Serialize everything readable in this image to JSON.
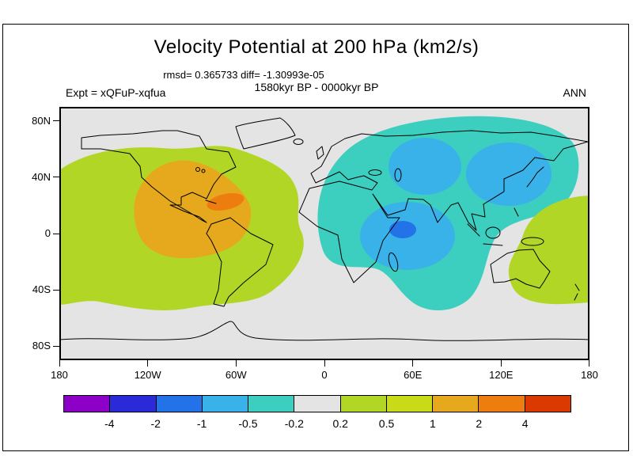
{
  "page": {
    "title": "Velocity Potential at 200 hPa (km2/s)",
    "stats": "rmsd= 0.365733 diff= -1.30993e-05",
    "period": "1580kyr BP - 0000kyr BP",
    "experiment": "Expt = xQFuP-xqfua",
    "season": "ANN"
  },
  "map": {
    "lat_ticks": [
      "80N",
      "40N",
      "0",
      "40S",
      "80S"
    ],
    "lon_ticks": [
      "180",
      "120W",
      "60W",
      "0",
      "60E",
      "120E",
      "180"
    ]
  },
  "colorbar": {
    "colors": [
      "#8c00c8",
      "#2a2ad8",
      "#2472e8",
      "#38b2e8",
      "#3ccfc0",
      "#e4e4e4",
      "#b2d626",
      "#c8da18",
      "#e6a81c",
      "#ee7d10",
      "#da3a00"
    ],
    "labels": [
      "-4",
      "-2",
      "-1",
      "-0.5",
      "-0.2",
      "0.2",
      "0.5",
      "1",
      "2",
      "4"
    ]
  },
  "chart_data": {
    "type": "heatmap",
    "subtype": "filled_contour_world_map",
    "title": "Velocity Potential at 200 hPa (km2/s)",
    "units": "km2/s",
    "stats": {
      "rmsd": 0.365733,
      "diff": -1.30993e-05
    },
    "difference": "1580kyr BP - 0000kyr BP",
    "experiment": "xQFuP-xqfua",
    "season": "ANN",
    "contour_levels": [
      -4,
      -2,
      -1,
      -0.5,
      -0.2,
      0.2,
      0.5,
      1,
      2,
      4
    ],
    "x_axis": {
      "ticks": [
        "180",
        "120W",
        "60W",
        "0",
        "60E",
        "120E",
        "180"
      ],
      "range_deg": [
        -180,
        180
      ]
    },
    "y_axis": {
      "ticks": [
        "80N",
        "40N",
        "0",
        "40S",
        "80S"
      ],
      "range_deg": [
        -90,
        90
      ]
    },
    "legend_position": "bottom",
    "grid": false,
    "background_band": "-0.2 to 0.2 (gray)",
    "features": [
      {
        "region": "Americas / East Pacific / Atlantic",
        "sign": "positive",
        "peak_band": "2 to 4",
        "center_lonlat": [
          -75,
          15
        ]
      },
      {
        "region": "Africa / Eurasia / Indian Ocean",
        "sign": "negative",
        "peak_band": "-2 to -1",
        "center_lonlat": [
          55,
          5
        ]
      },
      {
        "region": "Australia / Maritime Continent",
        "sign": "positive",
        "peak_band": "0.2 to 0.5",
        "center_lonlat": [
          135,
          -15
        ]
      }
    ]
  }
}
